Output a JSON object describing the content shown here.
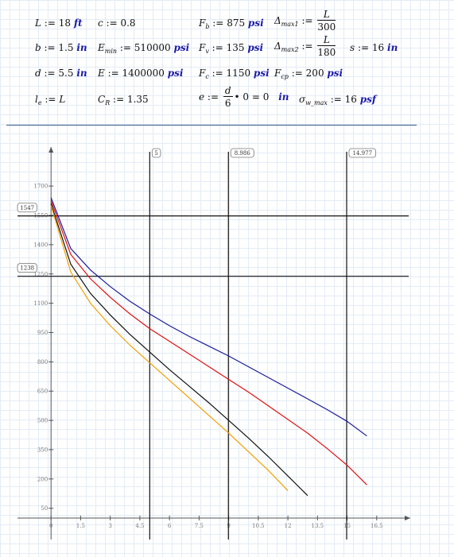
{
  "definitions": {
    "L": {
      "value": "18",
      "unit": "ft"
    },
    "b": {
      "value": "1.5",
      "unit": "in"
    },
    "d": {
      "value": "5.5",
      "unit": "in"
    },
    "le": {
      "value": "L"
    },
    "c": {
      "value": "0.8"
    },
    "E_min": {
      "value": "510000",
      "unit": "psi"
    },
    "E": {
      "value": "1400000",
      "unit": "psi"
    },
    "C_R": {
      "value": "1.35"
    },
    "F_b": {
      "value": "875",
      "unit": "psi"
    },
    "F_v": {
      "value": "135",
      "unit": "psi"
    },
    "F_c": {
      "value": "1150",
      "unit": "psi"
    },
    "e": {
      "num": "d",
      "den": "6",
      "rest": "• 0 = 0",
      "unit": "in"
    },
    "delta_max1": {
      "num": "L",
      "den": "300"
    },
    "delta_max2": {
      "num": "L",
      "den": "180"
    },
    "F_cp": {
      "value": "200",
      "unit": "psi"
    },
    "sigma_w_max": {
      "value": "16",
      "unit": "psf"
    },
    "s": {
      "value": "16",
      "unit": "in"
    }
  },
  "chart_data": {
    "type": "line",
    "x_ticks": [
      "0",
      "1.5",
      "3",
      "4.5",
      "6",
      "7.5",
      "9",
      "10.5",
      "12",
      "13.5",
      "15",
      "16.5"
    ],
    "y_ticks": [
      "50",
      "200",
      "350",
      "500",
      "650",
      "800",
      "950",
      "1100",
      "1250",
      "1400",
      "1550",
      "1700"
    ],
    "xlim": [
      -1.7,
      18.2
    ],
    "ylim": [
      -110,
      1900
    ],
    "series": [
      {
        "color": "#1a1a9a",
        "x": [
          0,
          1,
          2,
          3,
          4,
          5,
          6,
          7,
          8,
          9,
          10,
          11,
          12,
          13,
          14,
          15,
          16
        ],
        "y": [
          1640,
          1380,
          1270,
          1185,
          1110,
          1045,
          985,
          930,
          880,
          830,
          775,
          720,
          665,
          610,
          555,
          495,
          420
        ]
      },
      {
        "color": "#e01010",
        "x": [
          0,
          1,
          2,
          3,
          4,
          5,
          6,
          7,
          8,
          9,
          10,
          11,
          12,
          13,
          14,
          15,
          16
        ],
        "y": [
          1625,
          1350,
          1225,
          1130,
          1045,
          970,
          905,
          840,
          775,
          710,
          645,
          575,
          505,
          435,
          355,
          270,
          170
        ]
      },
      {
        "color": "#111111",
        "x": [
          0,
          1,
          2,
          3,
          4,
          5,
          6,
          7,
          8,
          9,
          10,
          11,
          12,
          13
        ],
        "y": [
          1610,
          1300,
          1150,
          1040,
          940,
          850,
          760,
          675,
          590,
          500,
          410,
          315,
          215,
          115
        ]
      },
      {
        "color": "#f2a000",
        "x": [
          0,
          1,
          2,
          3,
          4,
          5,
          6,
          7,
          8,
          9,
          10,
          11,
          12
        ],
        "y": [
          1600,
          1260,
          1100,
          985,
          885,
          795,
          705,
          615,
          525,
          435,
          340,
          245,
          140
        ]
      }
    ],
    "vertical_markers": [
      {
        "x": 5,
        "label": "5"
      },
      {
        "x": 8.986,
        "label": "8.986"
      },
      {
        "x": 14.977,
        "label": "14.977"
      }
    ],
    "horizontal_markers": [
      {
        "y": 1547,
        "label": "1547"
      },
      {
        "y": 1238,
        "label": "1238"
      }
    ]
  }
}
